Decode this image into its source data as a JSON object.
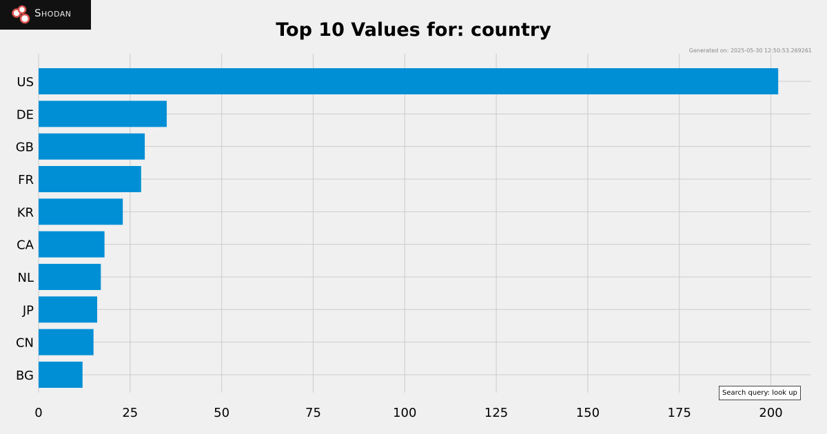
{
  "brand": {
    "logo_text": "Shodan",
    "icon": "shodan-logo-icon",
    "logo_bg": "#111111",
    "logo_accent": "#d9534f"
  },
  "generated": "Generated on: 2025-05-30 12:50:53.269261",
  "query": "Search query: look up",
  "chart_data": {
    "type": "bar",
    "orientation": "horizontal",
    "title": "Top 10 Values for: country",
    "xlabel": "",
    "ylabel": "",
    "categories": [
      "US",
      "DE",
      "GB",
      "FR",
      "KR",
      "CA",
      "NL",
      "JP",
      "CN",
      "BG"
    ],
    "values": [
      202,
      35,
      29,
      28,
      23,
      18,
      17,
      16,
      15,
      12
    ],
    "xlim": [
      0,
      211
    ],
    "xticks": [
      0,
      25,
      50,
      75,
      100,
      125,
      150,
      175,
      200
    ],
    "grid": true,
    "bar_color": "#008fd5",
    "grid_color": "#cbcbcb"
  }
}
